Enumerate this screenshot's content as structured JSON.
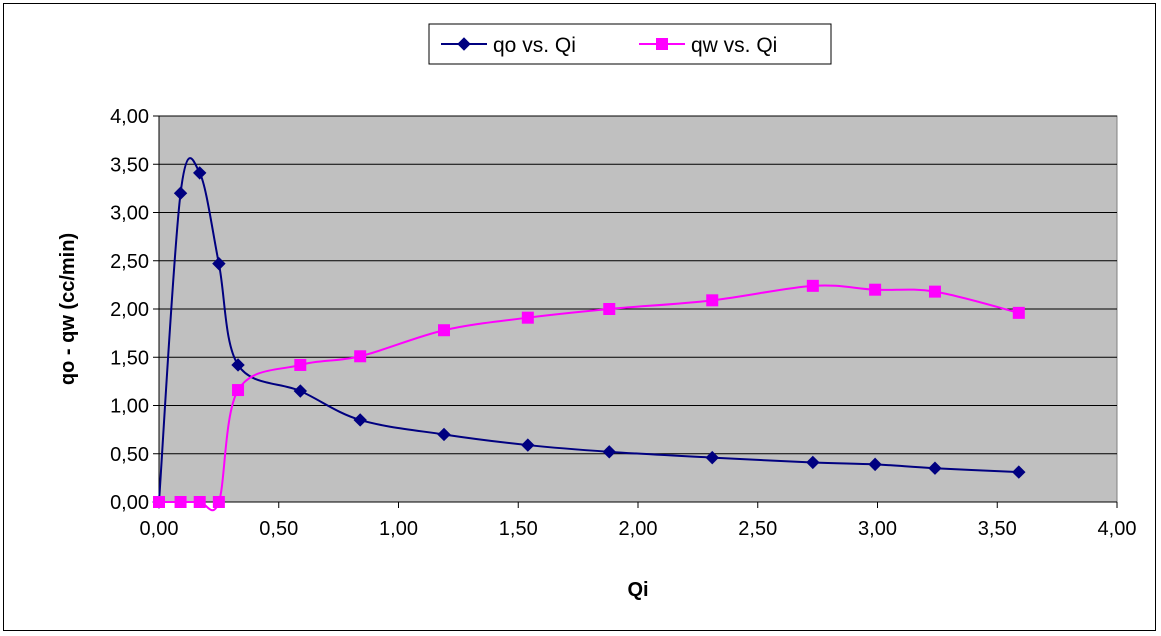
{
  "chart_data": {
    "type": "line",
    "title": "",
    "xlabel": "Qi",
    "ylabel": "qo - qw (cc/min)",
    "xlim": [
      0,
      4
    ],
    "ylim": [
      0,
      4
    ],
    "xticks": [
      "0,00",
      "0,50",
      "1,00",
      "1,50",
      "2,00",
      "2,50",
      "3,00",
      "3,50",
      "4,00"
    ],
    "yticks": [
      "0,00",
      "0,50",
      "1,00",
      "1,50",
      "2,00",
      "2,50",
      "3,00",
      "3,50",
      "4,00"
    ],
    "grid": "horizontal",
    "plot_background": "#c0c0c0",
    "legend_position": "top-center",
    "series": [
      {
        "name": "qo vs. Qi",
        "color": "#000080",
        "marker": "diamond",
        "x": [
          0.0,
          0.09,
          0.17,
          0.25,
          0.33,
          0.59,
          0.84,
          1.19,
          1.54,
          1.88,
          2.31,
          2.73,
          2.99,
          3.24,
          3.59
        ],
        "y": [
          0.0,
          3.2,
          3.41,
          2.47,
          1.42,
          1.15,
          0.85,
          0.7,
          0.59,
          0.52,
          0.46,
          0.41,
          0.39,
          0.35,
          0.31
        ]
      },
      {
        "name": "qw vs. Qi",
        "color": "#ff00ff",
        "marker": "square",
        "x": [
          0.0,
          0.09,
          0.17,
          0.25,
          0.33,
          0.59,
          0.84,
          1.19,
          1.54,
          1.88,
          2.31,
          2.73,
          2.99,
          3.24,
          3.59
        ],
        "y": [
          0.0,
          0.0,
          0.0,
          0.0,
          1.16,
          1.42,
          1.51,
          1.78,
          1.91,
          2.0,
          2.09,
          2.24,
          2.2,
          2.18,
          1.96
        ]
      }
    ]
  }
}
